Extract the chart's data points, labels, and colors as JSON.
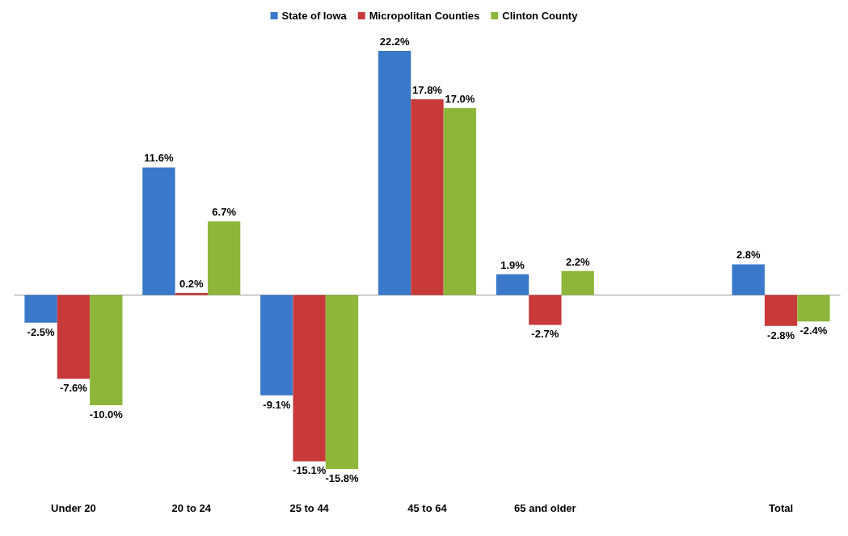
{
  "chart_data": {
    "type": "bar",
    "categories": [
      "Under 20",
      "20 to 24",
      "25 to 44",
      "45 to 64",
      "65 and older",
      null,
      "Total"
    ],
    "series": [
      {
        "name": "State of Iowa",
        "color": "#3a78c9",
        "values": [
          -2.5,
          11.6,
          -9.1,
          22.2,
          1.9,
          null,
          2.8
        ],
        "value_labels": [
          "-2.5%",
          "11.6%",
          "-9.1%",
          "22.2%",
          "1.9%",
          null,
          "2.8%"
        ]
      },
      {
        "name": "Micropolitan Counties",
        "color": "#c8393a",
        "values": [
          -7.6,
          0.2,
          -15.1,
          17.8,
          -2.7,
          null,
          -2.8
        ],
        "value_labels": [
          "-7.6%",
          "0.2%",
          "-15.1%",
          "17.8%",
          "-2.7%",
          null,
          "-2.8%"
        ]
      },
      {
        "name": "Clinton County",
        "color": "#8db63b",
        "values": [
          -10.0,
          6.7,
          -15.8,
          17.0,
          2.2,
          null,
          -2.4
        ],
        "value_labels": [
          "-10.0%",
          "6.7%",
          "-15.8%",
          "17.0%",
          "2.2%",
          null,
          "-2.4%"
        ]
      }
    ],
    "legend": "top",
    "grid": false
  }
}
